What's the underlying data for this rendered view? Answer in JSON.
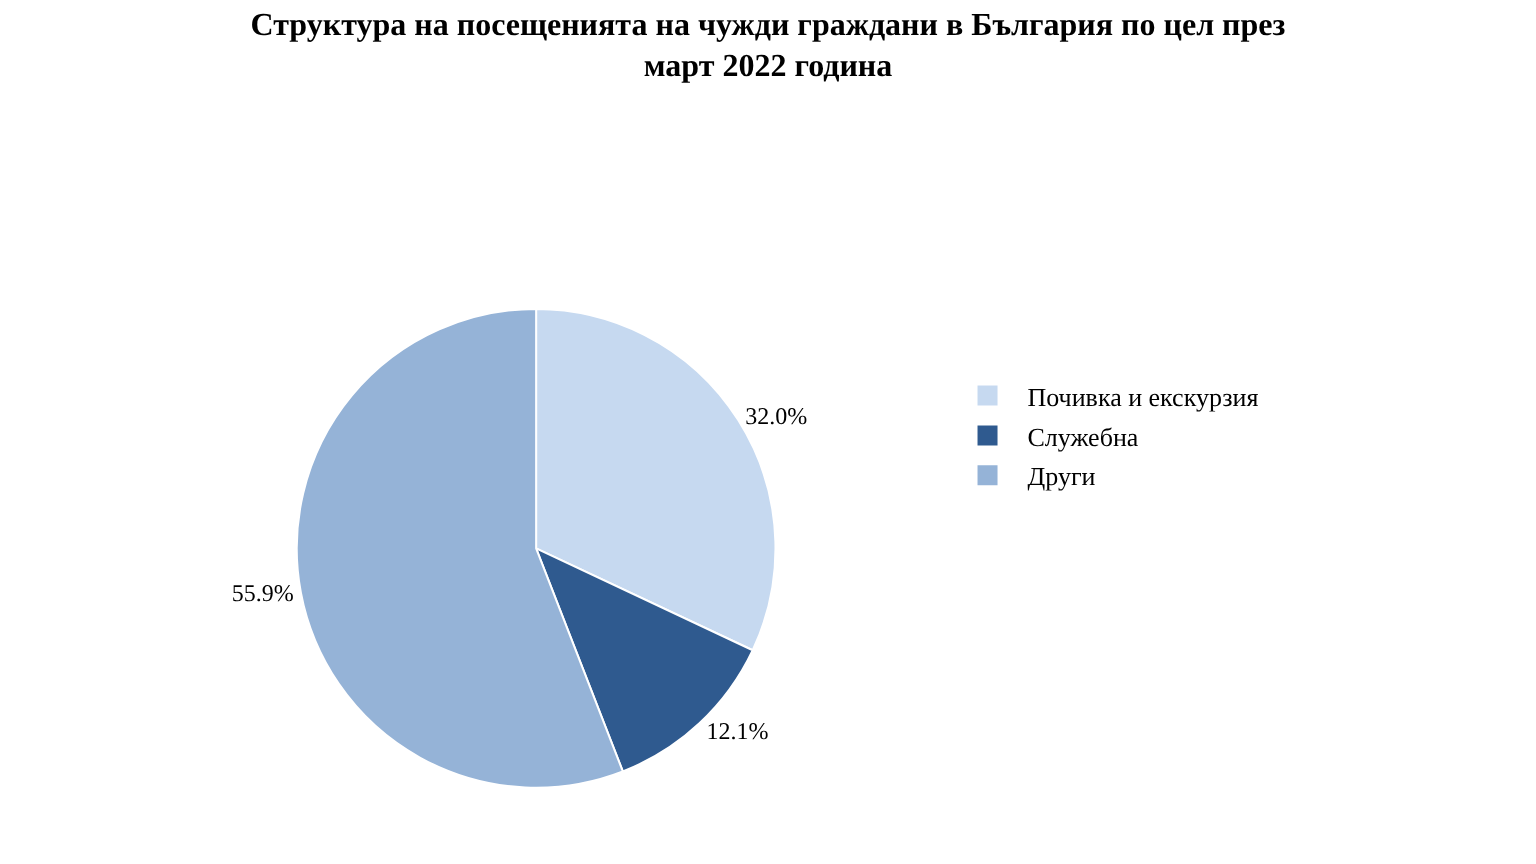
{
  "chart_data": {
    "type": "pie",
    "title": "Структура на посещенията на чужди граждани в България по цел през март 2022 година",
    "categories": [
      "Почивка и екскурзия",
      "Служебна",
      "Други"
    ],
    "values": [
      32.0,
      12.1,
      55.9
    ],
    "value_labels": [
      "32.0%",
      "12.1%",
      "55.9%"
    ],
    "colors": [
      "#c6d9f0",
      "#2f5a8f",
      "#95b3d7"
    ],
    "legend": "right"
  }
}
